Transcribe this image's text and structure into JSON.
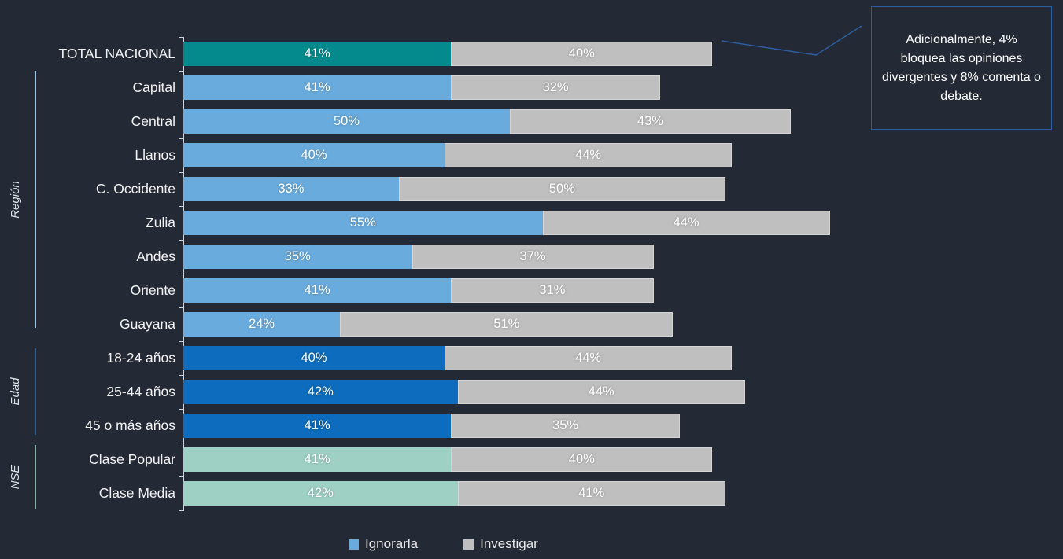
{
  "background_color": "#232935",
  "chart_data": {
    "type": "bar",
    "orientation": "horizontal",
    "stacked": true,
    "categories": [
      "TOTAL NACIONAL",
      "Capital",
      "Central",
      "Llanos",
      "C. Occidente",
      "Zulia",
      "Andes",
      "Oriente",
      "Guayana",
      "18-24 años",
      "25-44 años",
      "45 o más años",
      "Clase Popular",
      "Clase Media"
    ],
    "series": [
      {
        "name": "Ignorarla",
        "values": [
          41,
          41,
          50,
          40,
          33,
          55,
          35,
          41,
          24,
          40,
          42,
          41,
          41,
          42
        ]
      },
      {
        "name": "Investigar",
        "values": [
          40,
          32,
          43,
          44,
          50,
          44,
          37,
          31,
          51,
          44,
          44,
          35,
          40,
          41
        ]
      }
    ],
    "value_suffix": "%",
    "xlim": [
      0,
      100
    ],
    "axis_color": "#cfd5dc",
    "grid": false,
    "row_groups": [
      {
        "label": "",
        "from": 0,
        "to": 0,
        "bar_color": "#048a8c",
        "bracket_color": ""
      },
      {
        "label": "Región",
        "from": 1,
        "to": 8,
        "bar_color": "#6aabde",
        "bracket_color": "#9dc3e6"
      },
      {
        "label": "Edad",
        "from": 9,
        "to": 11,
        "bar_color": "#0d6cbd",
        "bracket_color": "#2e5c8a"
      },
      {
        "label": "NSE",
        "from": 12,
        "to": 13,
        "bar_color": "#9ed1c4",
        "bracket_color": "#87b0a3"
      }
    ],
    "series2_color": "#bfbfbf",
    "legend": [
      {
        "label": "Ignorarla",
        "color": "#6aabde"
      },
      {
        "label": "Investigar",
        "color": "#bfbfbf"
      }
    ],
    "legend_position": "bottom"
  },
  "annotation": {
    "text": "Adicionalmente, 4% bloquea las opiniones divergentes y 8% comenta o debate.",
    "border_color": "#2e5d9e",
    "text_color": "#ffffff"
  }
}
